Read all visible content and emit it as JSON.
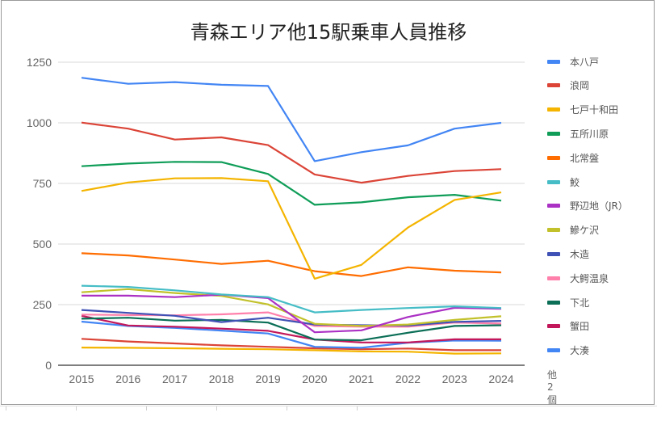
{
  "chart_data": {
    "type": "line",
    "title": "青森エリア他15駅乗車人員推移",
    "xlabel": "",
    "ylabel": "",
    "x": [
      "2015",
      "2016",
      "2017",
      "2018",
      "2019",
      "2020",
      "2021",
      "2022",
      "2023",
      "2024"
    ],
    "ylim": [
      0,
      1250
    ],
    "yticks": [
      0,
      250,
      500,
      750,
      1000,
      1250
    ],
    "grid": true,
    "legend_position": "right",
    "legend_more_label": "他 2 個",
    "series": [
      {
        "name": "本八戸",
        "color": "#4285f4",
        "values": [
          1186,
          1161,
          1168,
          1157,
          1152,
          842,
          879,
          907,
          976,
          1000
        ]
      },
      {
        "name": "浪岡",
        "color": "#db4437",
        "values": [
          1001,
          976,
          931,
          940,
          908,
          787,
          753,
          781,
          801,
          809
        ]
      },
      {
        "name": "七戸十和田",
        "color": "#f4b400",
        "values": [
          719,
          754,
          771,
          772,
          759,
          357,
          414,
          568,
          682,
          713
        ]
      },
      {
        "name": "五所川原",
        "color": "#0f9d58",
        "values": [
          821,
          832,
          839,
          838,
          789,
          662,
          672,
          693,
          703,
          679
        ]
      },
      {
        "name": "北常盤",
        "color": "#ff6d01",
        "values": [
          462,
          453,
          436,
          418,
          431,
          388,
          368,
          404,
          390,
          383
        ]
      },
      {
        "name": "鮫",
        "color": "#46bdc6",
        "values": [
          328,
          323,
          309,
          292,
          281,
          218,
          228,
          236,
          243,
          236
        ]
      },
      {
        "name": "野辺地（JR）",
        "color": "#ab30c4",
        "values": [
          287,
          287,
          281,
          291,
          277,
          136,
          144,
          199,
          237,
          233
        ]
      },
      {
        "name": "鰺ケ沢",
        "color": "#c2c12b",
        "values": [
          301,
          314,
          298,
          286,
          251,
          171,
          162,
          168,
          187,
          202
        ]
      },
      {
        "name": "木造",
        "color": "#3f51b5",
        "values": [
          228,
          216,
          204,
          178,
          196,
          168,
          165,
          164,
          179,
          183
        ]
      },
      {
        "name": "大鰐温泉",
        "color": "#ff80ab",
        "values": [
          209,
          207,
          206,
          210,
          218,
          162,
          159,
          159,
          176,
          172
        ]
      },
      {
        "name": "下北",
        "color": "#0b6e56",
        "values": [
          192,
          196,
          184,
          187,
          176,
          106,
          103,
          134,
          162,
          165
        ]
      },
      {
        "name": "蟹田",
        "color": "#c2185b",
        "values": [
          204,
          164,
          159,
          151,
          142,
          106,
          94,
          94,
          107,
          107
        ]
      },
      {
        "name": "大湊",
        "color": "#4285f4",
        "values": [
          180,
          162,
          154,
          143,
          131,
          76,
          72,
          93,
          102,
          101
        ]
      },
      {
        "name": "",
        "color": "#db4437",
        "in_legend": false,
        "values": [
          109,
          98,
          90,
          82,
          76,
          70,
          66,
          69,
          62,
          62
        ]
      },
      {
        "name": "",
        "color": "#f4b400",
        "in_legend": false,
        "values": [
          73,
          72,
          70,
          68,
          66,
          62,
          57,
          56,
          48,
          49
        ]
      }
    ]
  }
}
